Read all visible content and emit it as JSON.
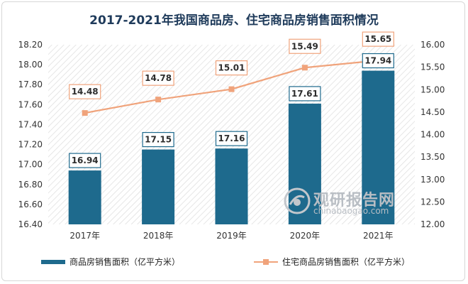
{
  "chart_data": {
    "type": "bar+line",
    "title": "2017-2021年我国商品房、住宅商品房销售面积情况",
    "categories": [
      "2017年",
      "2018年",
      "2019年",
      "2020年",
      "2021年"
    ],
    "series": [
      {
        "name": "商品房销售面积（亿平方米）",
        "kind": "bar",
        "axis": "left",
        "values": [
          16.94,
          17.15,
          17.16,
          17.61,
          17.94
        ],
        "color": "#1e6a8d"
      },
      {
        "name": "住宅商品房销售面积（亿平方米）",
        "kind": "line",
        "axis": "right",
        "values": [
          14.48,
          14.78,
          15.01,
          15.49,
          15.65
        ],
        "color": "#f0a37b"
      }
    ],
    "y_left": {
      "range": [
        16.4,
        18.2
      ],
      "ticks": [
        "16.40",
        "16.60",
        "16.80",
        "17.00",
        "17.20",
        "17.40",
        "17.60",
        "17.80",
        "18.00",
        "18.20"
      ]
    },
    "y_right": {
      "range": [
        12.0,
        16.0
      ],
      "ticks": [
        "12.00",
        "12.50",
        "13.00",
        "13.50",
        "14.00",
        "14.50",
        "15.00",
        "15.50",
        "16.00"
      ]
    },
    "grid": false,
    "legend": "bottom",
    "background_pattern": "diagonal-hatch"
  },
  "watermark": {
    "text": "观研报告网",
    "url": "chinabaogao.com"
  }
}
